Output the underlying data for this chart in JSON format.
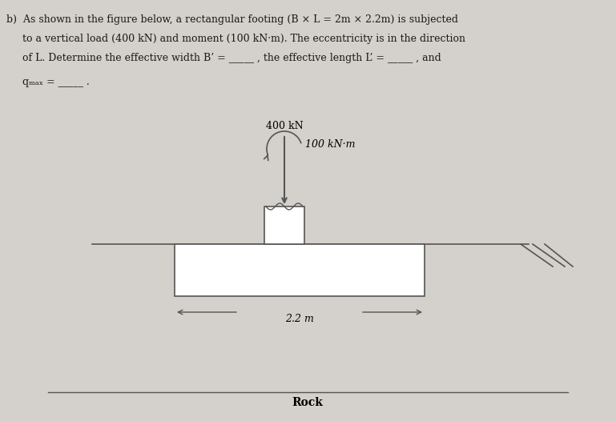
{
  "bg_color": "#d4d0cb",
  "text_color": "#1a1a1a",
  "line1": "b)  As shown in the figure below, a rectangular footing (B × L = 2m × 2.2m) is subjected",
  "line2": "     to a vertical load (400 kN) and moment (100 kN·m). The eccentricity is in the direction",
  "line3": "     of L. Determine the effective width B’ = _____ , the effective length L’ = _____ , and",
  "line4": "     qₘₐₓ = _____ .",
  "load_label": "400 kN",
  "moment_label": "100 kN·m",
  "dim_label": "2.2 m",
  "rock_label": "Rock",
  "struct_color": "#555555",
  "struct_lw": 1.2
}
